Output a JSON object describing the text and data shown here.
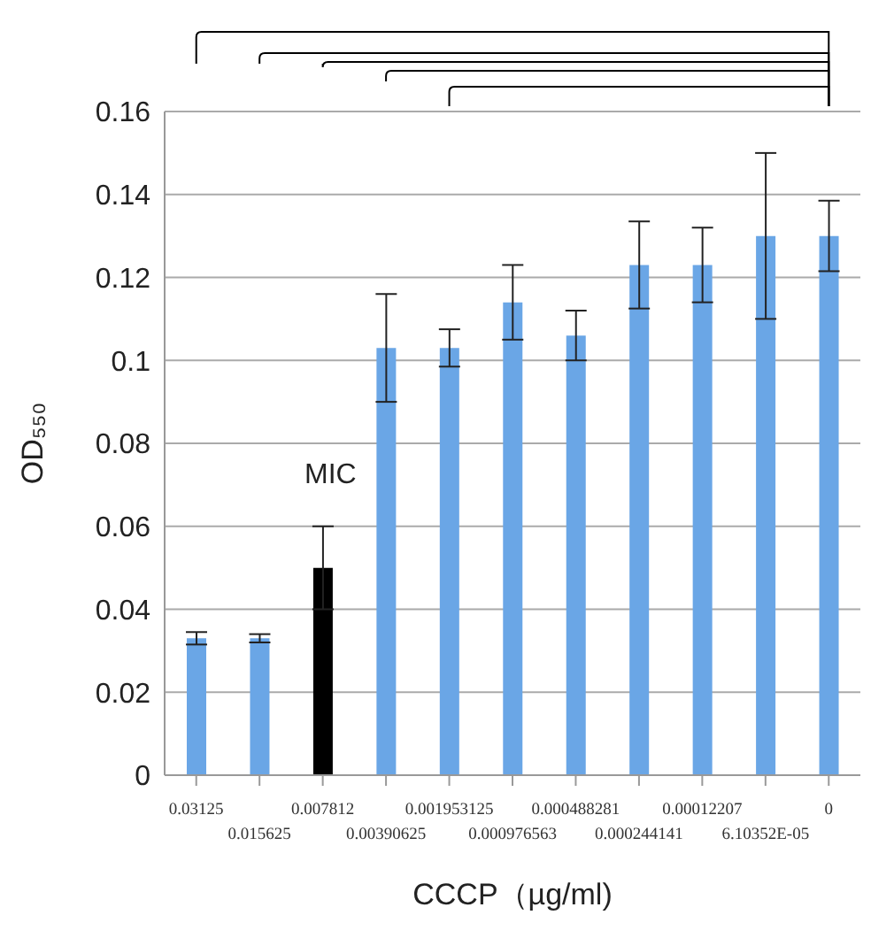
{
  "chart_data": {
    "type": "bar",
    "categories": [
      "0.03125",
      "0.015625",
      "0.007812",
      "0.00390625",
      "0.001953125",
      "0.000976563",
      "0.000488281",
      "0.000244141",
      "0.00012207",
      "6.10352E-05",
      "0"
    ],
    "values": [
      0.033,
      0.033,
      0.05,
      0.103,
      0.103,
      0.114,
      0.106,
      0.123,
      0.123,
      0.13,
      0.13
    ],
    "errors": [
      0.0015,
      0.001,
      0.01,
      0.013,
      0.0045,
      0.009,
      0.006,
      0.0105,
      0.009,
      0.02,
      0.0085
    ],
    "colors": [
      "#6aa6e6",
      "#6aa6e6",
      "#000000",
      "#6aa6e6",
      "#6aa6e6",
      "#6aa6e6",
      "#6aa6e6",
      "#6aa6e6",
      "#6aa6e6",
      "#6aa6e6",
      "#6aa6e6"
    ],
    "xlabel": "CCCP（µg/ml)",
    "ylabel": "OD₅₅₀",
    "ylim": [
      0,
      0.16
    ],
    "yticks": [
      0,
      0.02,
      0.04,
      0.06,
      0.08,
      0.1,
      0.12,
      0.14,
      0.16
    ],
    "grid": "y",
    "annotations": [
      "MIC"
    ]
  }
}
